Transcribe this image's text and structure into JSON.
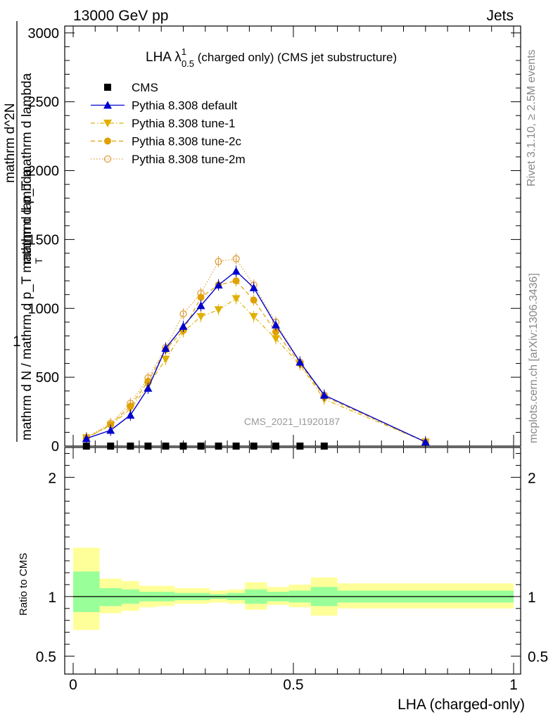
{
  "header": {
    "left": "13000 GeV pp",
    "right": "Jets"
  },
  "side_labels": {
    "rivet": "Rivet 3.1.10, ≥ 2.5M events",
    "mcplots": "mcplots.cern.ch [arXiv:1306.3436]"
  },
  "chart_data": [
    {
      "type": "line",
      "title": "LHA",
      "title_symbol": "λ",
      "title_sup": "1",
      "title_sub": "0.5",
      "title_suffix": " (charged only) (CMS jet substructure)",
      "ylabel_numerator": "1",
      "ylabel_denominator": "mathrm d N / mathrm d p_T mathrm d lambda",
      "ylabel_overlay_top": "mathrm d^2N",
      "ylabel_overlay_bottom": "mathrm d p_T mathrm d lambda",
      "ylabel_overlay_sub": "T",
      "watermark": "CMS_2021_I1920187",
      "xlim": [
        0,
        1
      ],
      "ylim": [
        0,
        3050
      ],
      "yticks": [
        "0",
        "500",
        "1000",
        "1500",
        "2000",
        "2500",
        "3000"
      ],
      "ytick_values": [
        0,
        500,
        1000,
        1500,
        2000,
        2500,
        3000
      ],
      "legend_position": "top-left",
      "series": [
        {
          "name": "CMS",
          "color": "#000000",
          "marker": "square",
          "x": [
            0.03,
            0.085,
            0.13,
            0.17,
            0.21,
            0.25,
            0.29,
            0.33,
            0.37,
            0.41,
            0.46,
            0.515,
            0.57
          ],
          "y": [
            0,
            0,
            0,
            0,
            0,
            0,
            0,
            0,
            0,
            0,
            0,
            0,
            0
          ]
        },
        {
          "name": "Pythia 8.308 default",
          "color": "#0000cc",
          "marker": "triangle-up",
          "linestyle": "solid",
          "x": [
            0.03,
            0.085,
            0.13,
            0.17,
            0.21,
            0.25,
            0.29,
            0.33,
            0.37,
            0.41,
            0.46,
            0.515,
            0.57,
            0.8
          ],
          "y": [
            55,
            115,
            225,
            420,
            710,
            870,
            1020,
            1170,
            1270,
            1150,
            880,
            610,
            370,
            30
          ]
        },
        {
          "name": "Pythia 8.308 tune-1",
          "color": "#e0b000",
          "marker": "triangle-down",
          "linestyle": "dashdot",
          "x": [
            0.03,
            0.085,
            0.13,
            0.17,
            0.21,
            0.25,
            0.29,
            0.33,
            0.37,
            0.41,
            0.46,
            0.515,
            0.57,
            0.8
          ],
          "y": [
            60,
            150,
            270,
            440,
            630,
            830,
            940,
            990,
            1070,
            940,
            780,
            590,
            340,
            30
          ]
        },
        {
          "name": "Pythia 8.308 tune-2c",
          "color": "#e0a000",
          "marker": "circle",
          "linestyle": "dashed",
          "x": [
            0.03,
            0.085,
            0.13,
            0.17,
            0.21,
            0.25,
            0.29,
            0.33,
            0.37,
            0.41,
            0.46,
            0.515,
            0.57,
            0.8
          ],
          "y": [
            58,
            155,
            290,
            470,
            700,
            840,
            1080,
            1170,
            1200,
            1060,
            830,
            600,
            360,
            30
          ]
        },
        {
          "name": "Pythia 8.308 tune-2m",
          "color": "#e0a040",
          "marker": "open-circle",
          "linestyle": "dotted",
          "x": [
            0.03,
            0.085,
            0.13,
            0.17,
            0.21,
            0.25,
            0.29,
            0.33,
            0.37,
            0.41,
            0.46,
            0.515,
            0.57,
            0.8
          ],
          "y": [
            62,
            165,
            310,
            495,
            715,
            960,
            1110,
            1340,
            1360,
            1170,
            900,
            610,
            370,
            30
          ]
        }
      ]
    },
    {
      "type": "area",
      "ylabel": "Ratio to CMS",
      "xlabel": "LHA (charged-only)",
      "xlim": [
        0,
        1
      ],
      "ylim": [
        0.35,
        2.25
      ],
      "yticks": [
        "0.5",
        "1",
        "2"
      ],
      "ytick_values": [
        0.5,
        1,
        2
      ],
      "xticks": [
        "0",
        "0.5",
        "1"
      ],
      "xtick_values": [
        0,
        0.5,
        1
      ],
      "reference": 1,
      "bins": [
        {
          "lo": 0.0,
          "hi": 0.06,
          "yellow": [
            0.72,
            1.41
          ],
          "green": [
            0.87,
            1.21
          ]
        },
        {
          "lo": 0.06,
          "hi": 0.11,
          "yellow": [
            0.86,
            1.15
          ],
          "green": [
            0.92,
            1.07
          ]
        },
        {
          "lo": 0.11,
          "hi": 0.15,
          "yellow": [
            0.88,
            1.13
          ],
          "green": [
            0.94,
            1.06
          ]
        },
        {
          "lo": 0.15,
          "hi": 0.19,
          "yellow": [
            0.91,
            1.09
          ],
          "green": [
            0.96,
            1.04
          ]
        },
        {
          "lo": 0.19,
          "hi": 0.23,
          "yellow": [
            0.92,
            1.09
          ],
          "green": [
            0.96,
            1.04
          ]
        },
        {
          "lo": 0.23,
          "hi": 0.27,
          "yellow": [
            0.94,
            1.07
          ],
          "green": [
            0.97,
            1.03
          ]
        },
        {
          "lo": 0.27,
          "hi": 0.31,
          "yellow": [
            0.94,
            1.07
          ],
          "green": [
            0.97,
            1.03
          ]
        },
        {
          "lo": 0.31,
          "hi": 0.35,
          "yellow": [
            0.95,
            1.05
          ],
          "green": [
            0.98,
            1.02
          ]
        },
        {
          "lo": 0.35,
          "hi": 0.39,
          "yellow": [
            0.94,
            1.06
          ],
          "green": [
            0.97,
            1.03
          ]
        },
        {
          "lo": 0.39,
          "hi": 0.44,
          "yellow": [
            0.89,
            1.12
          ],
          "green": [
            0.94,
            1.06
          ]
        },
        {
          "lo": 0.44,
          "hi": 0.49,
          "yellow": [
            0.93,
            1.08
          ],
          "green": [
            0.96,
            1.04
          ]
        },
        {
          "lo": 0.49,
          "hi": 0.54,
          "yellow": [
            0.91,
            1.1
          ],
          "green": [
            0.95,
            1.05
          ]
        },
        {
          "lo": 0.54,
          "hi": 0.6,
          "yellow": [
            0.84,
            1.16
          ],
          "green": [
            0.92,
            1.08
          ]
        },
        {
          "lo": 0.6,
          "hi": 1.0,
          "yellow": [
            0.9,
            1.11
          ],
          "green": [
            0.95,
            1.05
          ]
        }
      ],
      "band_colors": {
        "yellow": "#ffff99",
        "green": "#99ff99"
      }
    }
  ]
}
